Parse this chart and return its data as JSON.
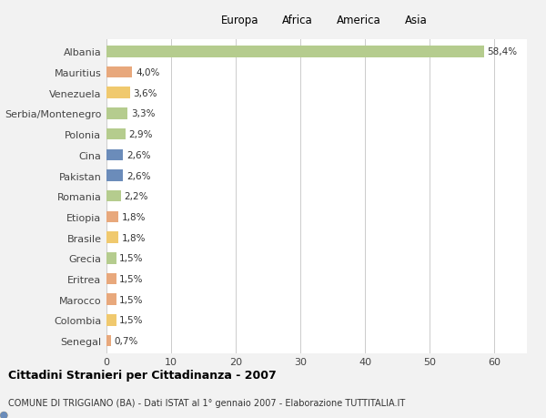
{
  "countries": [
    "Albania",
    "Mauritius",
    "Venezuela",
    "Serbia/Montenegro",
    "Polonia",
    "Cina",
    "Pakistan",
    "Romania",
    "Etiopia",
    "Brasile",
    "Grecia",
    "Eritrea",
    "Marocco",
    "Colombia",
    "Senegal"
  ],
  "values": [
    58.4,
    4.0,
    3.6,
    3.3,
    2.9,
    2.6,
    2.6,
    2.2,
    1.8,
    1.8,
    1.5,
    1.5,
    1.5,
    1.5,
    0.7
  ],
  "labels": [
    "58,4%",
    "4,0%",
    "3,6%",
    "3,3%",
    "2,9%",
    "2,6%",
    "2,6%",
    "2,2%",
    "1,8%",
    "1,8%",
    "1,5%",
    "1,5%",
    "1,5%",
    "1,5%",
    "0,7%"
  ],
  "continents": [
    "Europa",
    "Africa",
    "America",
    "Europa",
    "Europa",
    "Asia",
    "Asia",
    "Europa",
    "Africa",
    "America",
    "Europa",
    "Africa",
    "Africa",
    "America",
    "Africa"
  ],
  "continent_colors": {
    "Europa": "#b5cc8e",
    "Africa": "#e8a87c",
    "America": "#f0c96e",
    "Asia": "#6b8cba"
  },
  "legend_order": [
    "Europa",
    "Africa",
    "America",
    "Asia"
  ],
  "background_color": "#f2f2f2",
  "plot_bg_color": "#ffffff",
  "title": "Cittadini Stranieri per Cittadinanza - 2007",
  "subtitle": "COMUNE DI TRIGGIANO (BA) - Dati ISTAT al 1° gennaio 2007 - Elaborazione TUTTITALIA.IT",
  "xlim": [
    0,
    65
  ],
  "xticks": [
    0,
    10,
    20,
    30,
    40,
    50,
    60
  ],
  "bar_height": 0.55
}
